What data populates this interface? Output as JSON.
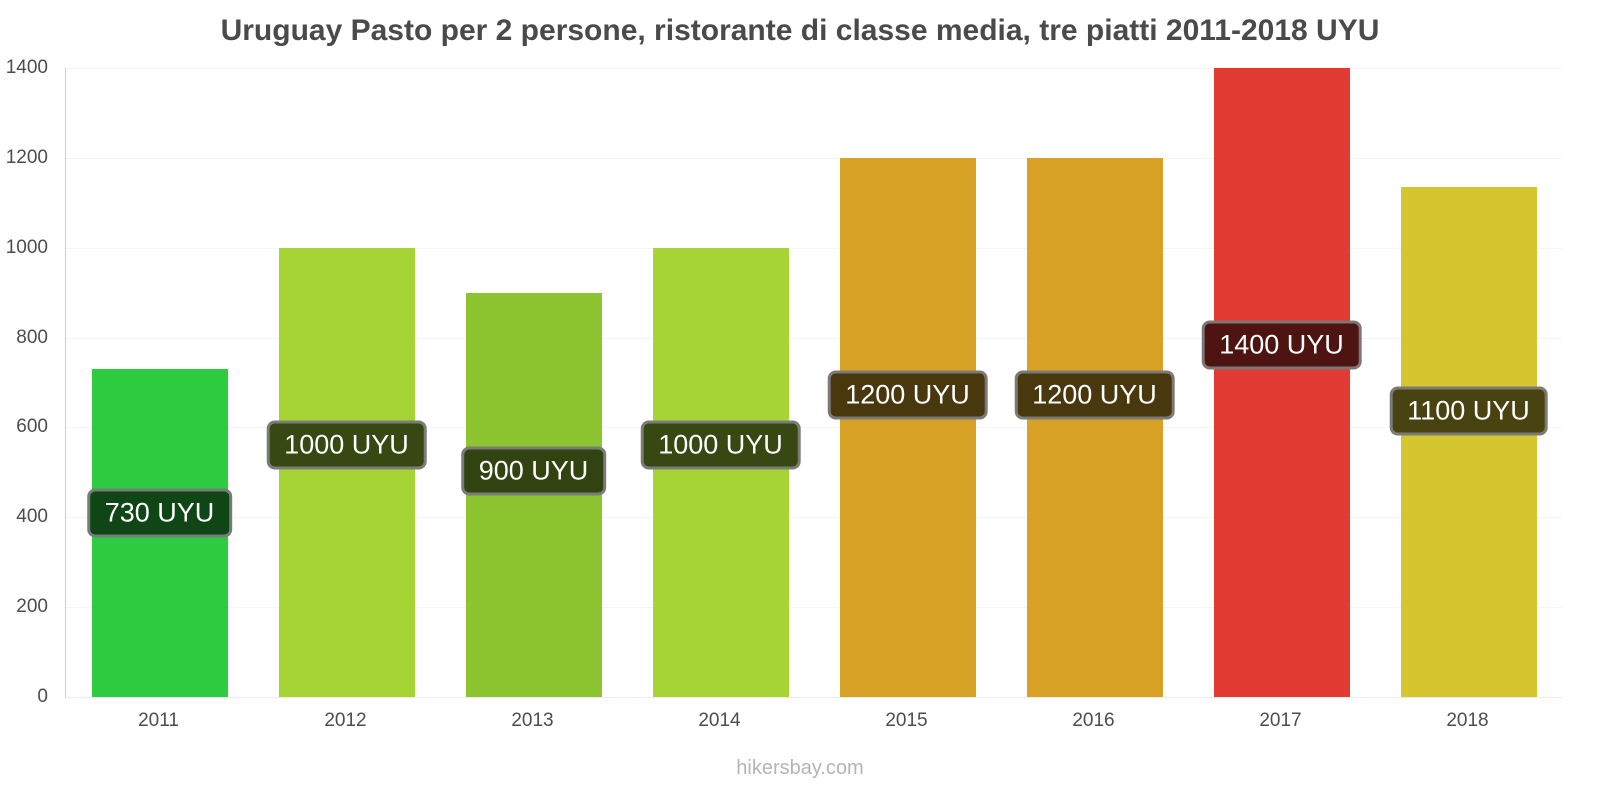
{
  "title": "Uruguay Pasto per 2 persone, ristorante di classe media, tre piatti 2011-2018 UYU",
  "footer": "hikersbay.com",
  "chart_data": {
    "type": "bar",
    "title": "Uruguay Pasto per 2 persone, ristorante di classe media, tre piatti 2011-2018 UYU",
    "categories": [
      "2011",
      "2012",
      "2013",
      "2014",
      "2015",
      "2016",
      "2017",
      "2018"
    ],
    "values": [
      730,
      1000,
      900,
      1000,
      1200,
      1200,
      1400,
      1100
    ],
    "value_labels": [
      "730 UYU",
      "1000 UYU",
      "900 UYU",
      "1000 UYU",
      "1200 UYU",
      "1200 UYU",
      "1400 UYU",
      "1100 UYU"
    ],
    "bar_heights_uyu": [
      730,
      1000,
      900,
      1000,
      1200,
      1200,
      1400,
      1135
    ],
    "colors": [
      "#2ECC40",
      "#A6D435",
      "#8CC52F",
      "#A6D435",
      "#D8A227",
      "#D8A227",
      "#E23B33",
      "#D5C52F"
    ],
    "xlabel": "",
    "ylabel": "",
    "ylim": [
      0,
      1400
    ],
    "yticks": [
      0,
      200,
      400,
      600,
      800,
      1000,
      1200,
      1400
    ],
    "grid": "faint-horizontal",
    "legend": "none",
    "currency": "UYU"
  }
}
